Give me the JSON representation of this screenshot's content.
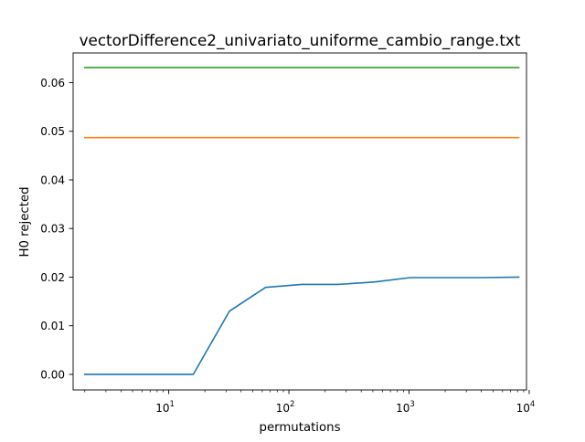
{
  "chart_data": {
    "type": "line",
    "title": "vectorDifference2_univariato_uniforme_cambio_range.txt",
    "xlabel": "permutations",
    "ylabel": "H0 rejected",
    "xscale": "log",
    "xlim": [
      1.6,
      9500
    ],
    "ylim": [
      -0.0032,
      0.0661
    ],
    "grid": false,
    "legend": "none",
    "x_ticks": [
      {
        "value": 10,
        "base": "10",
        "exp": "1"
      },
      {
        "value": 100,
        "base": "10",
        "exp": "2"
      },
      {
        "value": 1000,
        "base": "10",
        "exp": "3"
      },
      {
        "value": 10000,
        "base": "10",
        "exp": "4"
      }
    ],
    "y_ticks": [
      {
        "value": 0.0,
        "label": "0.00"
      },
      {
        "value": 0.01,
        "label": "0.01"
      },
      {
        "value": 0.02,
        "label": "0.02"
      },
      {
        "value": 0.03,
        "label": "0.03"
      },
      {
        "value": 0.04,
        "label": "0.04"
      },
      {
        "value": 0.05,
        "label": "0.05"
      },
      {
        "value": 0.06,
        "label": "0.06"
      }
    ],
    "series": [
      {
        "color": "#1f77b4",
        "x": [
          2,
          4,
          8,
          16,
          32,
          64,
          128,
          256,
          512,
          1024,
          2048,
          4096,
          8192
        ],
        "y": [
          0.0,
          0.0,
          0.0,
          0.0,
          0.013,
          0.0179,
          0.0185,
          0.0185,
          0.019,
          0.0199,
          0.0199,
          0.0199,
          0.02
        ]
      },
      {
        "color": "#ff7f0e",
        "x": [
          2,
          8192
        ],
        "y": [
          0.0487,
          0.0487
        ]
      },
      {
        "color": "#2ca02c",
        "x": [
          2,
          8192
        ],
        "y": [
          0.0631,
          0.0631
        ]
      }
    ]
  }
}
